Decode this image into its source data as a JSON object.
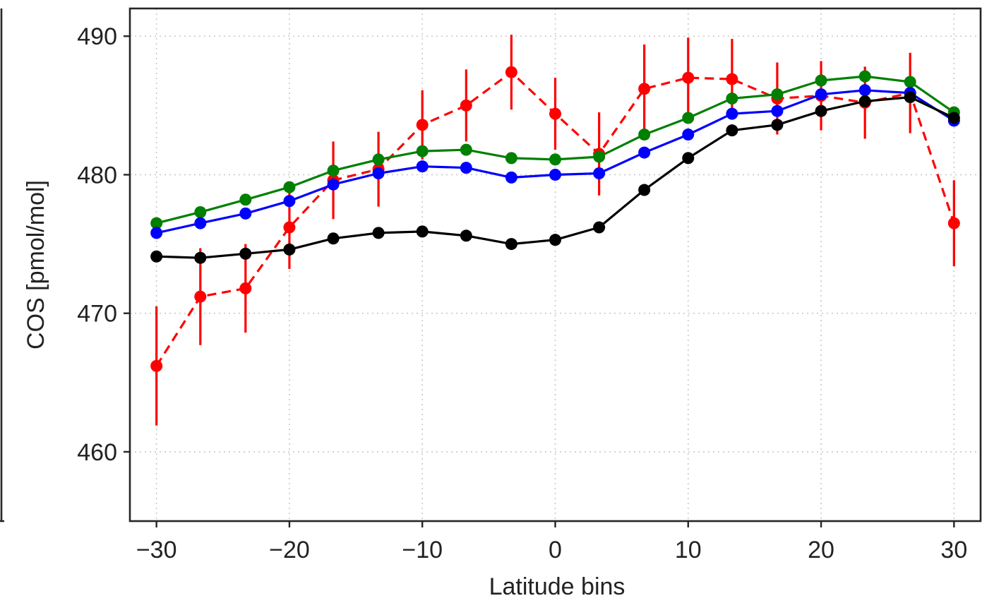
{
  "chart_data": {
    "type": "line",
    "title": "",
    "xlabel": "Latitude bins",
    "ylabel": "COS [pmol/mol]",
    "xlim": [
      -32,
      32
    ],
    "ylim": [
      455,
      492
    ],
    "xticks": [
      -30,
      -20,
      -10,
      0,
      10,
      20,
      30
    ],
    "xtick_labels": [
      "−30",
      "−20",
      "−10",
      "0",
      "10",
      "20",
      "30"
    ],
    "yticks": [
      460,
      470,
      480,
      490
    ],
    "ytick_labels": [
      "460",
      "470",
      "480",
      "490"
    ],
    "grid": true,
    "legend": null,
    "x": [
      -30,
      -26.7,
      -23.3,
      -20,
      -16.7,
      -13.3,
      -10,
      -6.7,
      -3.3,
      0,
      3.3,
      6.7,
      10,
      13.3,
      16.7,
      20,
      23.3,
      26.7,
      30
    ],
    "series": [
      {
        "color": "#ff0000",
        "linestyle": "dashed",
        "values": [
          466.2,
          471.2,
          471.8,
          476.2,
          479.6,
          480.4,
          483.6,
          485.0,
          487.4,
          484.4,
          481.5,
          486.2,
          487.0,
          486.9,
          485.5,
          485.7,
          485.2,
          485.9,
          476.5
        ],
        "errors": [
          4.3,
          3.5,
          3.2,
          3.0,
          2.8,
          2.7,
          2.5,
          2.6,
          2.7,
          2.6,
          3.0,
          3.2,
          2.9,
          2.9,
          2.6,
          2.5,
          2.6,
          2.9,
          3.1
        ]
      },
      {
        "color": "#008000",
        "linestyle": "solid",
        "values": [
          476.5,
          477.3,
          478.2,
          479.1,
          480.3,
          481.1,
          481.7,
          481.8,
          481.2,
          481.1,
          481.3,
          482.9,
          484.1,
          485.5,
          485.8,
          486.8,
          487.1,
          486.7,
          484.5
        ]
      },
      {
        "color": "#0000ff",
        "linestyle": "solid",
        "values": [
          475.8,
          476.5,
          477.2,
          478.1,
          479.3,
          480.1,
          480.6,
          480.5,
          479.8,
          480.0,
          480.1,
          481.6,
          482.9,
          484.4,
          484.6,
          485.8,
          486.1,
          485.9,
          483.9
        ]
      },
      {
        "color": "#000000",
        "linestyle": "solid",
        "values": [
          474.1,
          474.0,
          474.3,
          474.6,
          475.4,
          475.8,
          475.9,
          475.6,
          475.0,
          475.3,
          476.2,
          478.9,
          481.2,
          483.2,
          483.6,
          484.6,
          485.3,
          485.6,
          484.1
        ]
      }
    ]
  }
}
